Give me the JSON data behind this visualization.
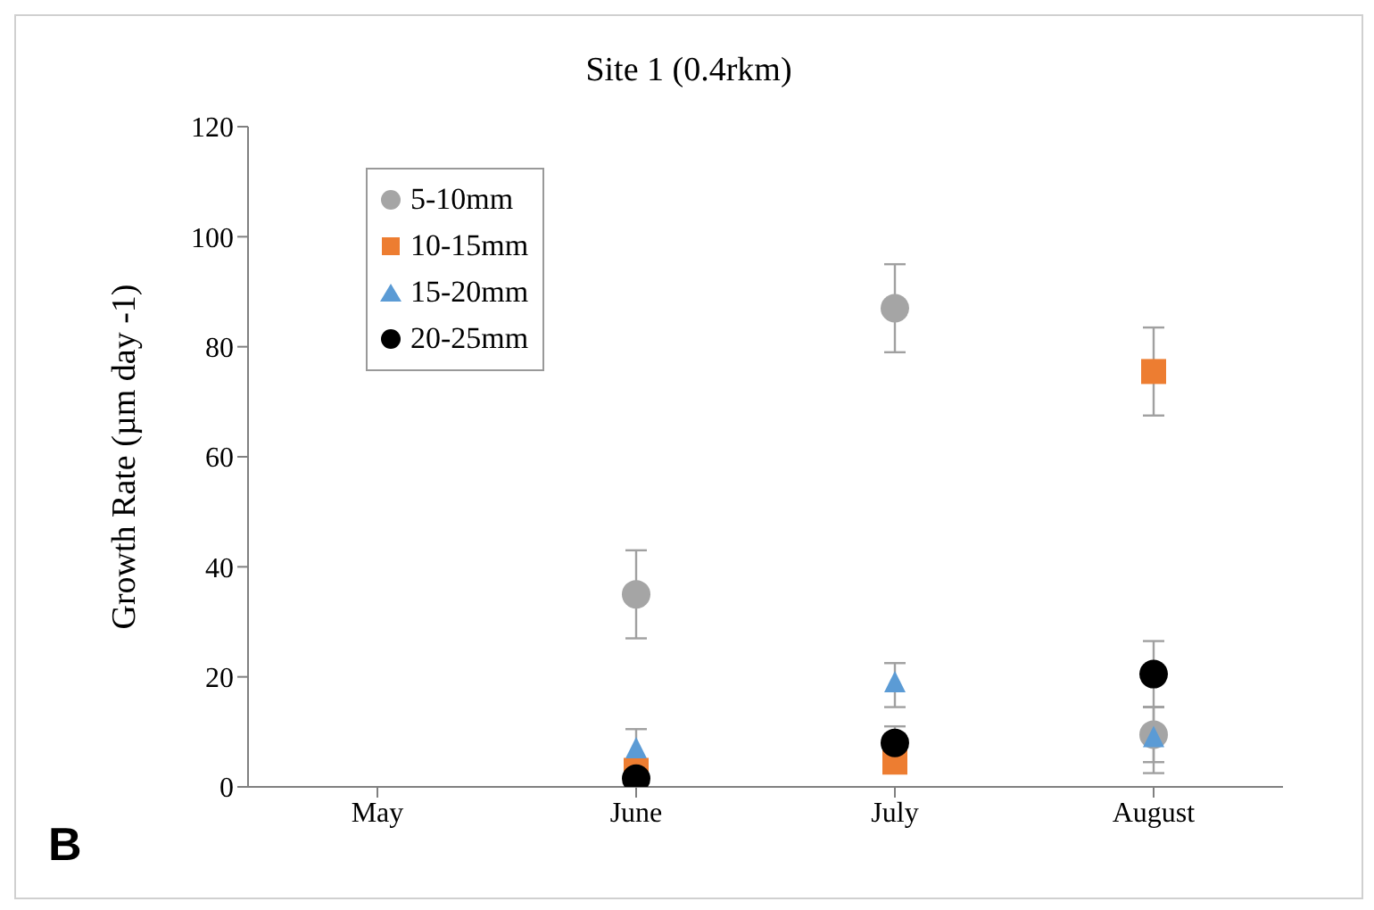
{
  "chart_data": {
    "type": "scatter",
    "title": "Site 1 (0.4rkm)",
    "ylabel": "Growth Rate (µm day -1)",
    "categories": [
      "May",
      "June",
      "July",
      "August"
    ],
    "ylim": [
      0,
      120
    ],
    "yticks": [
      0,
      20,
      40,
      60,
      80,
      100,
      120
    ],
    "grid": false,
    "legend": "top left",
    "annotations": [
      "B"
    ],
    "series": [
      {
        "name": "5-10mm",
        "color": "#a5a5a5",
        "marker": "circle",
        "values": [
          null,
          35,
          87,
          9.5
        ],
        "errors": [
          null,
          8,
          8,
          5
        ]
      },
      {
        "name": "10-15mm",
        "color": "#ed7d31",
        "marker": "square",
        "values": [
          null,
          3,
          4.5,
          75.5
        ],
        "errors": [
          null,
          2,
          2,
          8
        ]
      },
      {
        "name": "15-20mm",
        "color": "#5b9bd5",
        "marker": "triangle",
        "values": [
          null,
          6.5,
          18.5,
          8.5
        ],
        "errors": [
          null,
          4,
          4,
          6
        ]
      },
      {
        "name": "20-25mm",
        "color": "#000000",
        "marker": "circle",
        "values": [
          null,
          1.5,
          8,
          20.5
        ],
        "errors": [
          null,
          1,
          3,
          6
        ]
      }
    ]
  }
}
